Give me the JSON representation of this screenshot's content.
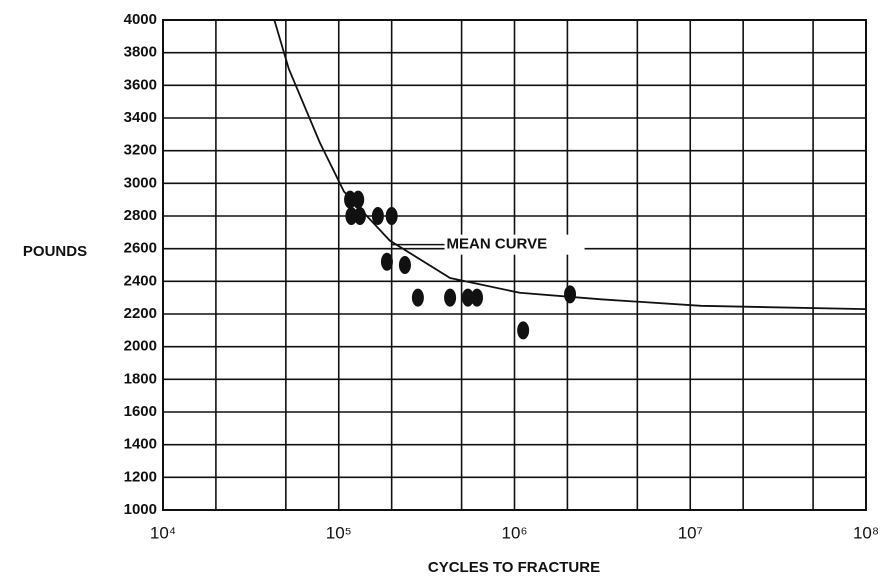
{
  "chart_data": {
    "type": "scatter",
    "xlabel": "CYCLES TO FRACTURE",
    "ylabel": "POUNDS",
    "annotation": "MEAN CURVE",
    "xscale": "log",
    "xlim": [
      10000,
      100000000
    ],
    "ylim": [
      1000,
      4000
    ],
    "xticks": [
      {
        "value": 10000,
        "label": "10⁴"
      },
      {
        "value": 100000,
        "label": "10⁵"
      },
      {
        "value": 1000000,
        "label": "10⁶"
      },
      {
        "value": 10000000,
        "label": "10⁷"
      },
      {
        "value": 100000000,
        "label": "10⁸"
      }
    ],
    "xminor": [
      20000,
      50000,
      200000,
      500000,
      2000000,
      5000000,
      20000000,
      50000000
    ],
    "yticks": [
      1000,
      1200,
      1400,
      1600,
      1800,
      2000,
      2200,
      2400,
      2600,
      2800,
      3000,
      3200,
      3400,
      3600,
      3800,
      4000
    ],
    "grid": true,
    "series": [
      {
        "color": "#111111",
        "x": [
          116000,
          129000,
          118000,
          132000,
          167000,
          200000,
          188000,
          238000,
          282000,
          430000,
          543000,
          612000,
          1120000,
          2070000
        ],
        "values": [
          2900,
          2900,
          2800,
          2800,
          2800,
          2800,
          2520,
          2500,
          2300,
          2300,
          2300,
          2300,
          2100,
          2320
        ]
      }
    ],
    "curve": {
      "color": "#111111",
      "x": [
        43000,
        52000,
        78000,
        107000,
        195000,
        430000,
        1070000,
        3100000,
        11500000,
        100000000
      ],
      "values": [
        4000,
        3700,
        3250,
        2950,
        2650,
        2420,
        2330,
        2290,
        2250,
        2230
      ]
    }
  }
}
